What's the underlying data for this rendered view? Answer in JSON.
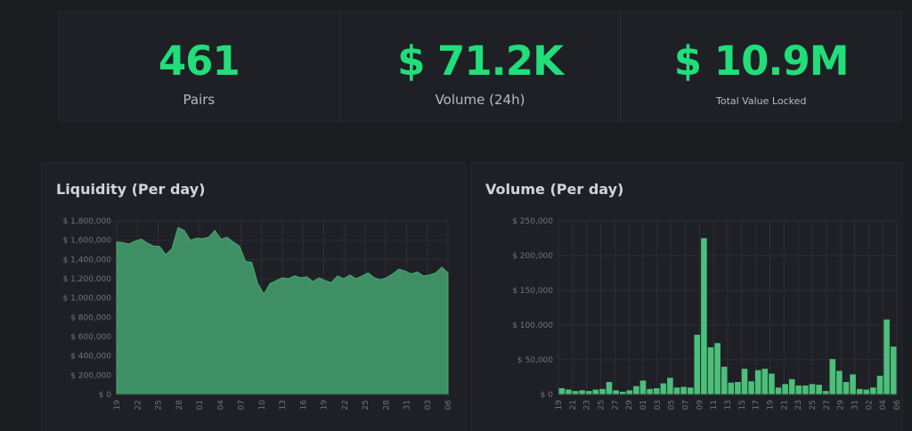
{
  "stats": {
    "pairs": {
      "value": "461",
      "label": "Pairs"
    },
    "volume": {
      "value": "$ 71.2K",
      "label": "Volume (24h)"
    },
    "tvl": {
      "value": "$ 10.9M",
      "label": "Total Value Locked"
    }
  },
  "colors": {
    "accent": "#20de7a",
    "liquidity_fill": "#3e8f63",
    "volume_bar": "#4cbf7a"
  },
  "chart_data": [
    {
      "type": "area",
      "title": "Liquidity (Per day)",
      "ylim": [
        0,
        1800000
      ],
      "yticks": [
        "$ 0",
        "$ 200,000",
        "$ 400,000",
        "$ 600,000",
        "$ 800,000",
        "$ 1,000,000",
        "$ 1,200,000",
        "$ 1,400,000",
        "$ 1,600,000",
        "$ 1,800,000"
      ],
      "xticks": [
        "19",
        "22",
        "25",
        "28",
        "01",
        "04",
        "07",
        "10",
        "13",
        "16",
        "19",
        "22",
        "25",
        "28",
        "31",
        "03",
        "06"
      ],
      "grid": true,
      "values": [
        1580000,
        1575000,
        1560000,
        1590000,
        1610000,
        1570000,
        1540000,
        1535000,
        1450000,
        1510000,
        1730000,
        1700000,
        1600000,
        1620000,
        1615000,
        1630000,
        1700000,
        1610000,
        1630000,
        1580000,
        1540000,
        1380000,
        1370000,
        1150000,
        1040000,
        1150000,
        1180000,
        1210000,
        1200000,
        1230000,
        1210000,
        1220000,
        1170000,
        1210000,
        1180000,
        1160000,
        1230000,
        1200000,
        1240000,
        1200000,
        1230000,
        1260000,
        1210000,
        1190000,
        1210000,
        1250000,
        1300000,
        1280000,
        1250000,
        1270000,
        1230000,
        1240000,
        1260000,
        1320000,
        1260000
      ]
    },
    {
      "type": "bar",
      "title": "Volume (Per day)",
      "ylim": [
        0,
        250000
      ],
      "yticks": [
        "$ 0",
        "$ 50,000",
        "$ 100,000",
        "$ 150,000",
        "$ 200,000",
        "$ 250,000"
      ],
      "xticks": [
        "19",
        "21",
        "23",
        "25",
        "27",
        "29",
        "01",
        "03",
        "05",
        "07",
        "09",
        "11",
        "13",
        "15",
        "17",
        "19",
        "21",
        "23",
        "25",
        "27",
        "29",
        "31",
        "02",
        "04",
        "06"
      ],
      "grid": true,
      "values": [
        9000,
        7000,
        5000,
        6000,
        5000,
        7000,
        8000,
        18000,
        6000,
        4000,
        6000,
        12000,
        20000,
        8000,
        9000,
        16000,
        24000,
        10000,
        11000,
        10000,
        86000,
        225000,
        68000,
        74000,
        40000,
        17000,
        18000,
        37000,
        19000,
        35000,
        37000,
        30000,
        10000,
        15000,
        22000,
        13000,
        13000,
        15000,
        14000,
        5000,
        51000,
        34000,
        18000,
        29000,
        8000,
        7000,
        10000,
        27000,
        108000,
        69000
      ]
    }
  ]
}
